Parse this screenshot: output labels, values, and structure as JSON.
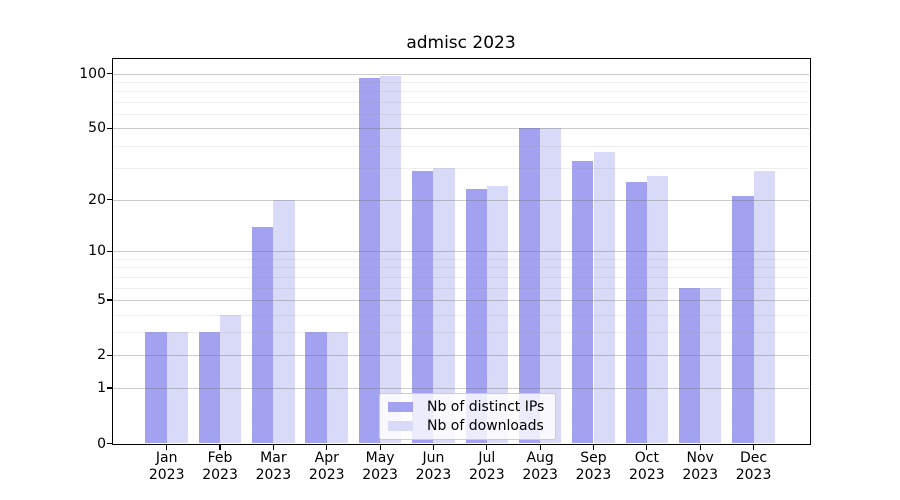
{
  "chart_data": {
    "type": "bar",
    "title": "admisc 2023",
    "categories": [
      "Jan",
      "Feb",
      "Mar",
      "Apr",
      "May",
      "Jun",
      "Jul",
      "Aug",
      "Sep",
      "Oct",
      "Nov",
      "Dec"
    ],
    "x_tick_line2": "2023",
    "series": [
      {
        "name": "Nb of distinct IPs",
        "color": "#a2a2f0",
        "values": [
          3,
          3,
          14,
          3,
          95,
          29,
          23,
          50,
          33,
          25,
          6,
          21
        ]
      },
      {
        "name": "Nb of downloads",
        "color": "#d9d9f8",
        "values": [
          3,
          4,
          20,
          3,
          97,
          30,
          24,
          50,
          37,
          27,
          6,
          29
        ]
      }
    ],
    "xlabel": "",
    "ylabel": "",
    "yscale": "log10(value+1)",
    "ylim": [
      0,
      120
    ],
    "y_tick_labels": [
      "100",
      "50",
      "20",
      "10",
      "5",
      "2",
      "1",
      "0"
    ],
    "y_tick_values": [
      100,
      50,
      20,
      10,
      5,
      2,
      1,
      0
    ],
    "y_major_gridlines": [
      1,
      2,
      5,
      10,
      20,
      50,
      100
    ],
    "y_minor_gridlines": [
      3,
      4,
      6,
      7,
      8,
      9,
      30,
      40,
      60,
      70,
      80,
      90
    ],
    "grid": true,
    "legend_position": "lower center",
    "legend_entries": [
      "Nb of distinct IPs",
      "Nb of downloads"
    ],
    "colors": {
      "frame": "#000000",
      "major_grid": "#cbcbcb",
      "minor_grid": "#ebebeb"
    }
  }
}
